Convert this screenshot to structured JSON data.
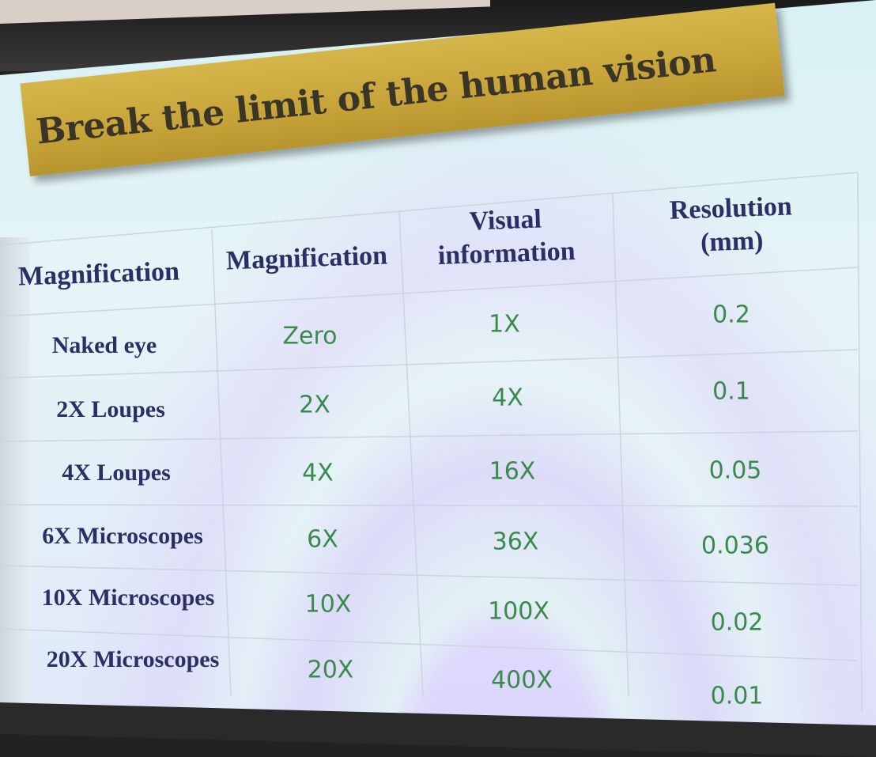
{
  "slide": {
    "title": "Break the limit of the human vision",
    "table": {
      "headers": [
        "Magnification",
        "Magnification",
        "Visual information",
        "Resolution (mm)"
      ],
      "header_lines": [
        [
          "Magnification"
        ],
        [
          "Magnification"
        ],
        [
          "Visual",
          "information"
        ],
        [
          "Resolution",
          "(mm)"
        ]
      ],
      "rows": [
        [
          "Naked eye",
          "Zero",
          "1X",
          "0.2"
        ],
        [
          "2X Loupes",
          "2X",
          "4X",
          "0.1"
        ],
        [
          "4X Loupes",
          "4X",
          "16X",
          "0.05"
        ],
        [
          "6X Microscopes",
          "6X",
          "36X",
          "0.036"
        ],
        [
          "10X Microscopes",
          "10X",
          "100X",
          "0.02"
        ],
        [
          "20X Microscopes",
          "20X",
          "400X",
          "0.01"
        ]
      ]
    },
    "colors": {
      "banner": "#c7a439",
      "header_text": "#2a2f66",
      "value_text": "#3a8a4c"
    }
  }
}
